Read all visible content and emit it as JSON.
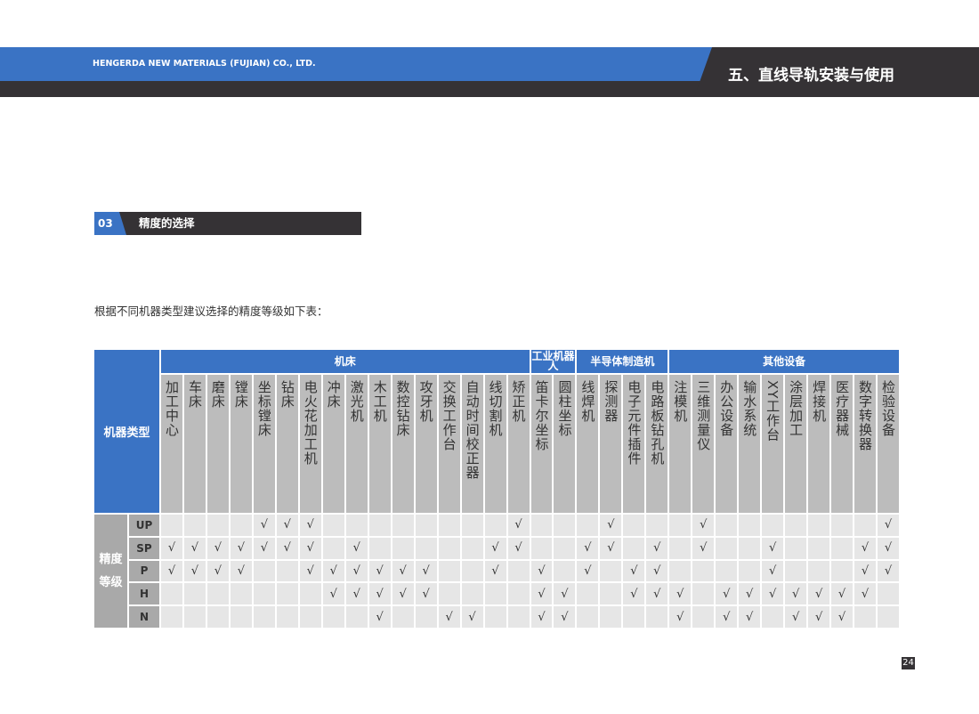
{
  "header": {
    "company": "HENGERDA NEW MATERIALS (FUJIAN) CO., LTD.",
    "section": "五、直线导轨安装与使用"
  },
  "subsection": {
    "number": "03",
    "title": "精度的选择"
  },
  "intro": "根据不同机器类型建议选择的精度等级如下表：",
  "table": {
    "row_header": "机器类型",
    "grade_header": "精度等级",
    "check_mark": "√",
    "groups": [
      {
        "label": "机床",
        "span": 16
      },
      {
        "label": "工业机器人",
        "span": 2
      },
      {
        "label": "半导体制造机",
        "span": 4
      },
      {
        "label": "其他设备",
        "span": 10
      }
    ],
    "machines": [
      "加工中心",
      "车床",
      "磨床",
      "镗床",
      "坐标镗床",
      "钻床",
      "电火花加工机",
      "冲床",
      "激光机",
      "木工机",
      "数控钻床",
      "攻牙机",
      "交换工作台",
      "自动时间校正器",
      "线切割机",
      "矫正机",
      "笛卡尔坐标",
      "圆柱坐标",
      "线焊机",
      "探测器",
      "电子元件插件",
      "电路板钻孔机",
      "注模机",
      "三维测量仪",
      "办公设备",
      "输水系统",
      "XY工作台",
      "涂层加工",
      "焊接机",
      "医疗器械",
      "数字转换器",
      "检验设备"
    ],
    "grades": [
      {
        "grade": "UP",
        "checks": [
          0,
          0,
          0,
          0,
          1,
          1,
          1,
          0,
          0,
          0,
          0,
          0,
          0,
          0,
          0,
          1,
          0,
          0,
          0,
          1,
          0,
          0,
          0,
          1,
          0,
          0,
          0,
          0,
          0,
          0,
          0,
          1
        ]
      },
      {
        "grade": "SP",
        "checks": [
          1,
          1,
          1,
          1,
          1,
          1,
          1,
          0,
          1,
          0,
          0,
          0,
          0,
          0,
          1,
          1,
          0,
          0,
          1,
          1,
          0,
          1,
          0,
          1,
          0,
          0,
          1,
          0,
          0,
          0,
          1,
          1
        ]
      },
      {
        "grade": "P",
        "checks": [
          1,
          1,
          1,
          1,
          0,
          0,
          1,
          1,
          1,
          1,
          1,
          1,
          0,
          0,
          1,
          0,
          1,
          0,
          1,
          0,
          1,
          1,
          0,
          0,
          0,
          0,
          1,
          0,
          0,
          0,
          1,
          1
        ]
      },
      {
        "grade": "H",
        "checks": [
          0,
          0,
          0,
          0,
          0,
          0,
          0,
          1,
          1,
          1,
          1,
          1,
          0,
          0,
          0,
          0,
          1,
          1,
          0,
          0,
          1,
          1,
          1,
          0,
          1,
          1,
          1,
          1,
          1,
          1,
          1,
          0
        ]
      },
      {
        "grade": "N",
        "checks": [
          0,
          0,
          0,
          0,
          0,
          0,
          0,
          0,
          0,
          1,
          0,
          0,
          1,
          1,
          0,
          0,
          1,
          1,
          0,
          0,
          0,
          0,
          1,
          0,
          1,
          1,
          0,
          1,
          1,
          1,
          0,
          0
        ]
      }
    ]
  },
  "page_number": "24",
  "colors": {
    "brand_blue": "#3a73c4",
    "dark": "#353235",
    "header_gray": "#bcbcbc",
    "cell_gray": "#e6e6e6"
  }
}
